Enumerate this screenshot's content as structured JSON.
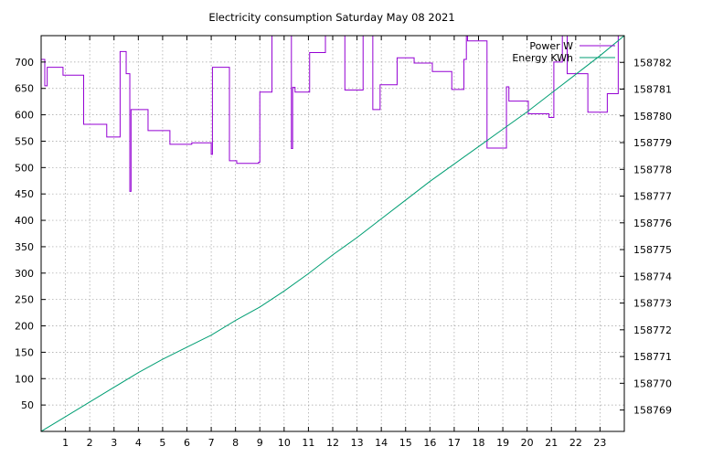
{
  "chart_data": {
    "type": "line",
    "title": "Electricity consumption Saturday May 08 2021",
    "x": {
      "range": [
        0,
        24
      ],
      "ticks": [
        1,
        2,
        3,
        4,
        5,
        6,
        7,
        8,
        9,
        10,
        11,
        12,
        13,
        14,
        15,
        16,
        17,
        18,
        19,
        20,
        21,
        22,
        23
      ],
      "labels": [
        "1",
        "2",
        "3",
        "4",
        "5",
        "6",
        "7",
        "8",
        "9",
        "10",
        "11",
        "12",
        "13",
        "14",
        "15",
        "16",
        "17",
        "18",
        "19",
        "20",
        "21",
        "22",
        "23"
      ]
    },
    "y_left": {
      "range": [
        0,
        750
      ],
      "ticks": [
        50,
        100,
        150,
        200,
        250,
        300,
        350,
        400,
        450,
        500,
        550,
        600,
        650,
        700
      ],
      "labels": [
        "50",
        "100",
        "150",
        "200",
        "250",
        "300",
        "350",
        "400",
        "450",
        "500",
        "550",
        "600",
        "650",
        "700"
      ]
    },
    "y_right": {
      "range": [
        158768.2,
        158783.0
      ],
      "ticks": [
        158769,
        158770,
        158771,
        158772,
        158773,
        158774,
        158775,
        158776,
        158777,
        158778,
        158779,
        158780,
        158781,
        158782
      ],
      "labels": [
        "158769",
        "158770",
        "158771",
        "158772",
        "158773",
        "158774",
        "158775",
        "158776",
        "158777",
        "158778",
        "158779",
        "158780",
        "158781",
        "158782"
      ]
    },
    "grid": true,
    "legend_position": "top-right",
    "series": [
      {
        "name": "Power W",
        "axis": "left",
        "style": "steps",
        "color": "#9400d3",
        "points": [
          [
            0,
            705
          ],
          [
            0.15,
            655
          ],
          [
            0.25,
            690
          ],
          [
            0.9,
            675
          ],
          [
            1.75,
            582
          ],
          [
            2.7,
            558
          ],
          [
            3.25,
            720
          ],
          [
            3.5,
            678
          ],
          [
            3.65,
            455
          ],
          [
            3.7,
            610
          ],
          [
            4.4,
            570
          ],
          [
            5.3,
            544
          ],
          [
            6.2,
            547
          ],
          [
            7.0,
            525
          ],
          [
            7.05,
            690
          ],
          [
            7.75,
            513
          ],
          [
            8.05,
            508
          ],
          [
            8.95,
            510
          ],
          [
            9.0,
            643
          ],
          [
            9.5,
            750
          ],
          [
            10.3,
            536
          ],
          [
            10.35,
            652
          ],
          [
            10.45,
            643
          ],
          [
            11.05,
            718
          ],
          [
            11.7,
            750
          ],
          [
            12.5,
            647
          ],
          [
            13.25,
            750
          ],
          [
            13.65,
            610
          ],
          [
            13.95,
            657
          ],
          [
            14.65,
            708
          ],
          [
            15.35,
            698
          ],
          [
            16.1,
            682
          ],
          [
            16.9,
            648
          ],
          [
            17.4,
            705
          ],
          [
            17.5,
            750
          ],
          [
            17.55,
            740
          ],
          [
            18.35,
            537
          ],
          [
            19.15,
            653
          ],
          [
            19.25,
            626
          ],
          [
            20.05,
            602
          ],
          [
            20.9,
            595
          ],
          [
            21.1,
            700
          ],
          [
            21.45,
            750
          ],
          [
            21.65,
            678
          ],
          [
            22.5,
            605
          ],
          [
            23.3,
            640
          ],
          [
            23.75,
            750
          ]
        ],
        "end_x": 24
      },
      {
        "name": "Energy KWh",
        "axis": "right",
        "style": "line",
        "color": "#009e73",
        "points": [
          [
            0,
            158768.2
          ],
          [
            1,
            158768.75
          ],
          [
            2,
            158769.3
          ],
          [
            3,
            158769.85
          ],
          [
            4,
            158770.4
          ],
          [
            5,
            158770.9
          ],
          [
            6,
            158771.35
          ],
          [
            7,
            158771.8
          ],
          [
            8,
            158772.35
          ],
          [
            9,
            158772.85
          ],
          [
            10,
            158773.45
          ],
          [
            11,
            158774.1
          ],
          [
            12,
            158774.8
          ],
          [
            13,
            158775.45
          ],
          [
            14,
            158776.15
          ],
          [
            15,
            158776.85
          ],
          [
            16,
            158777.55
          ],
          [
            17,
            158778.2
          ],
          [
            18,
            158778.85
          ],
          [
            19,
            158779.5
          ],
          [
            20,
            158780.15
          ],
          [
            21,
            158780.85
          ],
          [
            22,
            158781.55
          ],
          [
            23,
            158782.25
          ],
          [
            24,
            158783.0
          ]
        ]
      }
    ]
  }
}
